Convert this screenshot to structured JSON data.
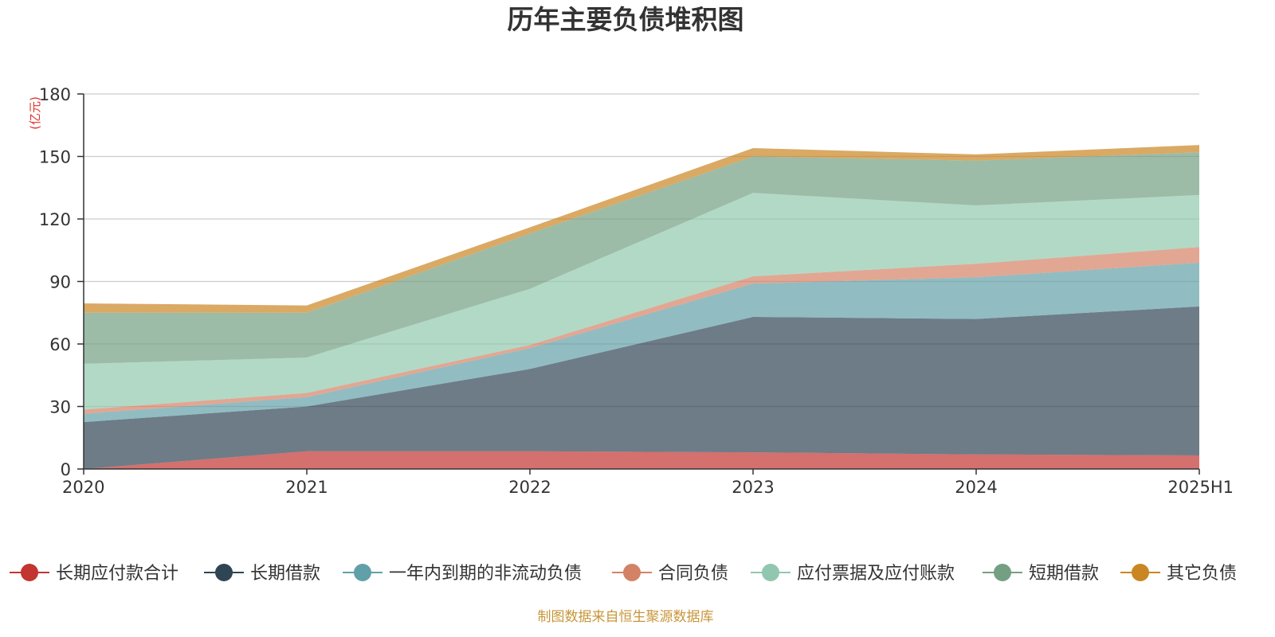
{
  "chart_data": {
    "type": "area",
    "stacked": true,
    "title": "历年主要负债堆积图",
    "unit_label": "(亿元)",
    "x": [
      "2020",
      "2021",
      "2022",
      "2023",
      "2024",
      "2025H1"
    ],
    "ylim": [
      0,
      180
    ],
    "yticks": [
      "0",
      "30",
      "60",
      "90",
      "120",
      "150",
      "180"
    ],
    "grid": true,
    "legend_position": "bottom",
    "series": [
      {
        "name": "长期应付款合计",
        "color": "#c23531",
        "values": [
          0,
          8.5,
          8.5,
          8,
          7,
          6.5
        ]
      },
      {
        "name": "长期借款",
        "color": "#2f4554",
        "values": [
          22.5,
          21.5,
          39.5,
          65,
          65,
          71.5
        ]
      },
      {
        "name": "一年内到期的非流动负债",
        "color": "#61a0a8",
        "values": [
          4,
          4.5,
          10,
          16,
          20,
          21
        ]
      },
      {
        "name": "合同负债",
        "color": "#d48265",
        "values": [
          2,
          2,
          1.5,
          3.5,
          6.5,
          7.5
        ]
      },
      {
        "name": "应付票据及应付账款",
        "color": "#91c7ae",
        "values": [
          22,
          17,
          27,
          40,
          28,
          25
        ]
      },
      {
        "name": "短期借款",
        "color": "#749f83",
        "values": [
          24.5,
          21.5,
          26.5,
          17.5,
          21.5,
          20.5
        ]
      },
      {
        "name": "其它负债",
        "color": "#ca8622",
        "values": [
          4.5,
          3.5,
          3,
          4,
          3,
          3.5
        ]
      }
    ],
    "source": "制图数据来自恒生聚源数据库"
  }
}
